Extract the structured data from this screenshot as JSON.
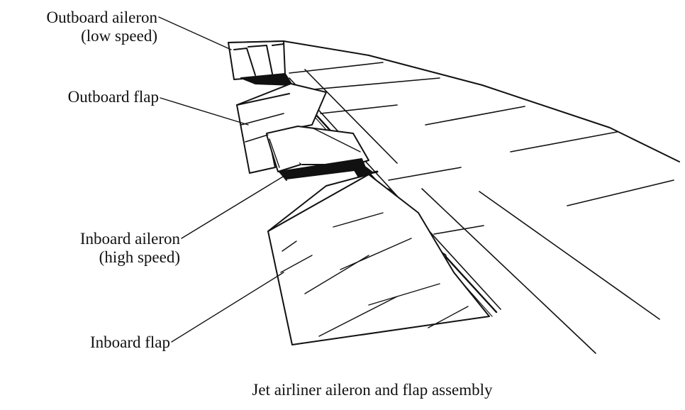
{
  "labels": {
    "outboard_aileron": {
      "line1": "Outboard aileron",
      "line2": "(low speed)"
    },
    "outboard_flap": {
      "line1": "Outboard flap"
    },
    "inboard_aileron": {
      "line1": "Inboard aileron",
      "line2": "(high speed)"
    },
    "inboard_flap": {
      "line1": "Inboard flap"
    }
  },
  "caption": "Jet airliner aileron and flap assembly",
  "colors": {
    "ink": "#111111",
    "background": "#ffffff"
  }
}
